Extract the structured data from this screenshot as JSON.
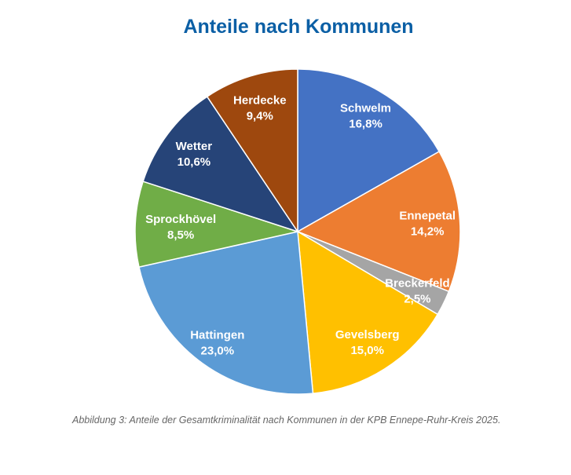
{
  "chart_data": {
    "type": "pie",
    "title": "Anteile nach Kommunen",
    "start": "top, clockwise",
    "unit": "%",
    "slices": [
      {
        "label": "Schwelm",
        "value": 16.8,
        "text": "16,8%",
        "color": "#4472C4"
      },
      {
        "label": "Ennepetal",
        "value": 14.2,
        "text": "14,2%",
        "color": "#ED7D31"
      },
      {
        "label": "Breckerfeld",
        "value": 2.5,
        "text": "2,5%",
        "color": "#A5A5A5"
      },
      {
        "label": "Gevelsberg",
        "value": 15.0,
        "text": "15,0%",
        "color": "#FFC000"
      },
      {
        "label": "Hattingen",
        "value": 23.0,
        "text": "23,0%",
        "color": "#5B9BD5"
      },
      {
        "label": "Sprockhövel",
        "value": 8.5,
        "text": "8,5%",
        "color": "#70AD47"
      },
      {
        "label": "Wetter",
        "value": 10.6,
        "text": "10,6%",
        "color": "#264478"
      },
      {
        "label": "Herdecke",
        "value": 9.4,
        "text": "9,4%",
        "color": "#9E480E"
      }
    ]
  },
  "caption": "Abbildung 3: Anteile der Gesamtkriminalität nach Kommunen in der KPB Ennepe-Ruhr-Kreis 2025."
}
